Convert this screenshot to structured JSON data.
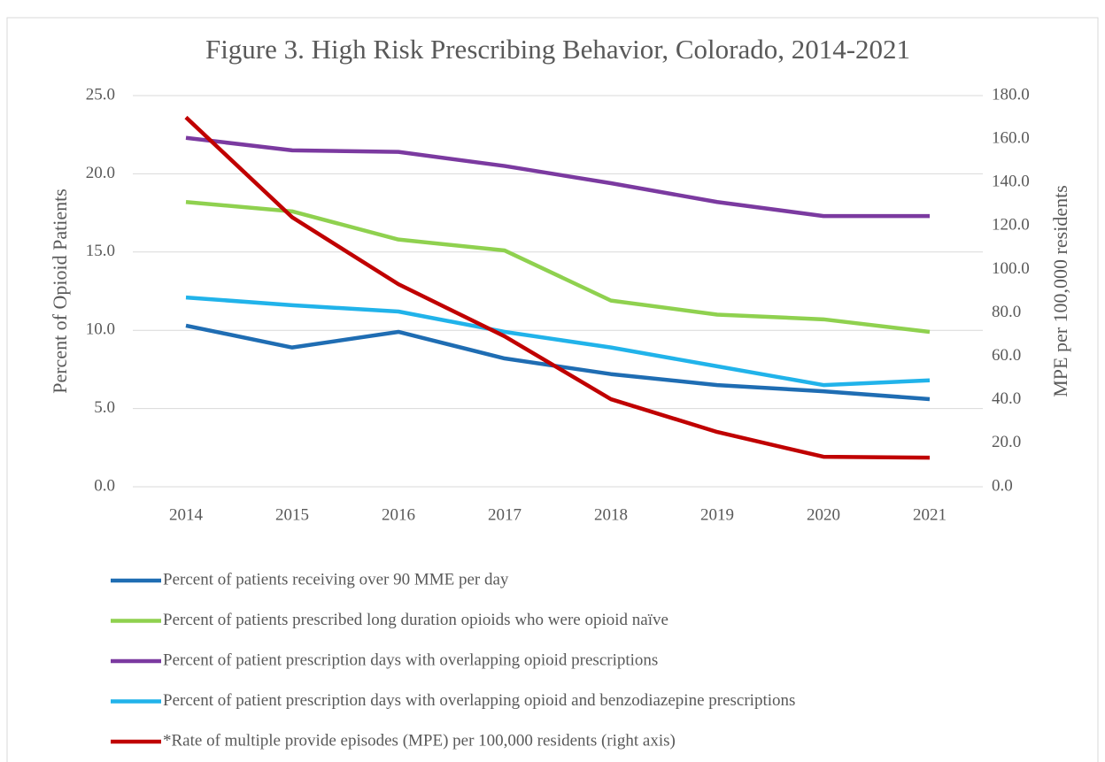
{
  "chart_data": {
    "type": "line",
    "title": "Figure 3. High Risk Prescribing Behavior, Colorado, 2014-2021",
    "y_label": "Percent of Opioid Patients",
    "y2_label": "MPE per 100,000 residents",
    "categories": [
      "2014",
      "2015",
      "2016",
      "2017",
      "2018",
      "2019",
      "2020",
      "2021"
    ],
    "ylim": [
      0,
      25
    ],
    "yticks": [
      {
        "value": 0,
        "label": "0.0"
      },
      {
        "value": 5,
        "label": "5.0"
      },
      {
        "value": 10,
        "label": "10.0"
      },
      {
        "value": 15,
        "label": "15.0"
      },
      {
        "value": 20,
        "label": "20.0"
      },
      {
        "value": 25,
        "label": "25.0"
      }
    ],
    "y2lim": [
      0,
      180
    ],
    "y2ticks": [
      {
        "value": 0,
        "label": "0.0"
      },
      {
        "value": 20,
        "label": "20.0"
      },
      {
        "value": 40,
        "label": "40.0"
      },
      {
        "value": 60,
        "label": "60.0"
      },
      {
        "value": 80,
        "label": "80.0"
      },
      {
        "value": 100,
        "label": "100.0"
      },
      {
        "value": 120,
        "label": "120.0"
      },
      {
        "value": 140,
        "label": "140.0"
      },
      {
        "value": 160,
        "label": "160.0"
      },
      {
        "value": 180,
        "label": "180.0"
      }
    ],
    "grid": true,
    "legend": "bottom",
    "series": [
      {
        "name": "Percent of patients receiving over 90 MME per day",
        "color": "#1f6db3",
        "values": [
          10.3,
          8.9,
          9.9,
          8.2,
          7.2,
          6.5,
          6.1,
          5.6
        ]
      },
      {
        "name": "Percent of patients prescribed long duration opioids who were opioid naïve",
        "color": "#8fd14f",
        "values": [
          18.2,
          17.6,
          15.8,
          15.1,
          11.9,
          11.0,
          10.7,
          9.9
        ]
      },
      {
        "name": "Percent of patient prescription days with overlapping opioid prescriptions",
        "color": "#7b3aa0",
        "values": [
          22.3,
          21.5,
          21.4,
          20.5,
          19.4,
          18.2,
          17.3,
          17.3
        ]
      },
      {
        "name": "Percent of patient prescription days with overlapping opioid and benzodiazepine prescriptions",
        "color": "#21b3ea",
        "values": [
          12.1,
          11.6,
          11.2,
          9.9,
          8.9,
          7.7,
          6.5,
          6.8
        ]
      },
      {
        "name": "*Rate of multiple provide episodes (MPE) per 100,000 residents (right axis)",
        "color": "#c00000",
        "axis": "y2",
        "values": [
          170,
          124,
          93.2,
          69.2,
          40.3,
          25.2,
          13.8,
          13.4
        ]
      }
    ]
  }
}
